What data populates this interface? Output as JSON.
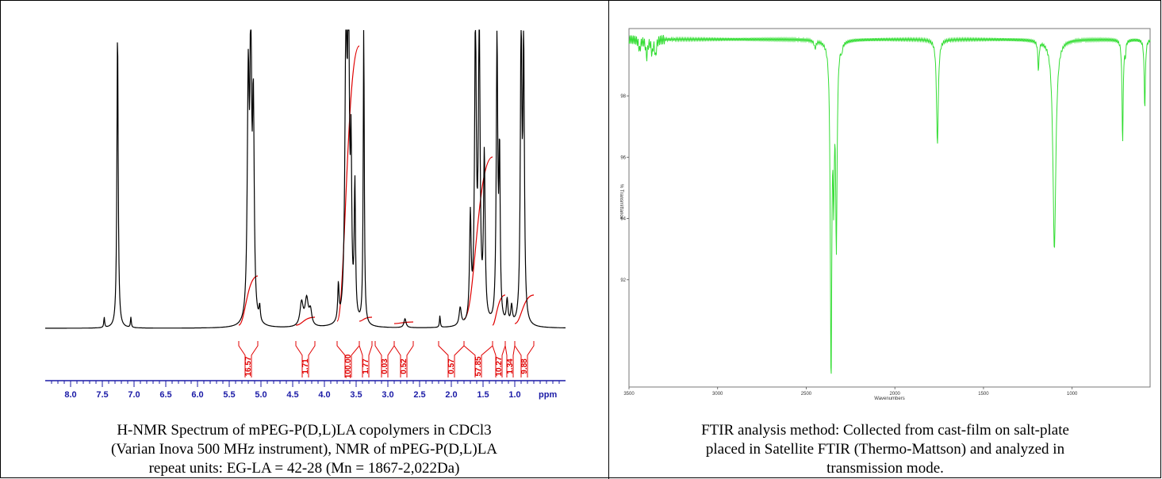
{
  "nmr": {
    "caption_lines": [
      "H-NMR Spectrum of mPEG-P(D,L)LA copolymers in CDCl3",
      "(Varian Inova 500 MHz instrument), NMR of mPEG-P(D,L)LA",
      "repeat units: EG-LA = 42-28 (Mn = 1867-2,022Da)"
    ],
    "axis_unit": "ppm",
    "colors": {
      "spectrum": "#000000",
      "integral": "#e00000",
      "axis": "#1a1aa6"
    }
  },
  "ftir": {
    "caption_lines": [
      "FTIR analysis method: Collected from cast-film on salt-plate",
      "placed in Satellite FTIR (Thermo-Mattson) and analyzed in",
      "transmission mode."
    ],
    "xlabel": "Wavenumbers",
    "ylabel": "% Transmittance",
    "colors": {
      "spectrum": "#33dd33",
      "axis": "#555555"
    }
  },
  "chart_data": [
    {
      "type": "line",
      "name": "1H-NMR spectrum",
      "xlabel": "ppm",
      "xlim": [
        8.4,
        0.2
      ],
      "x_reversed": true,
      "x_ticks": [
        8.0,
        7.5,
        7.0,
        6.5,
        6.0,
        5.5,
        5.0,
        4.5,
        4.0,
        3.5,
        3.0,
        2.5,
        2.0,
        1.5,
        1.0
      ],
      "x_tick_labels": [
        "8.0",
        "7.5",
        "7.0",
        "6.5",
        "6.0",
        "5.5",
        "5.0",
        "4.5",
        "4.0",
        "3.5",
        "3.0",
        "2.5",
        "2.0",
        "1.5",
        "1.0"
      ],
      "peaks": [
        {
          "ppm": 7.26,
          "height": 1.0,
          "width": 0.012
        },
        {
          "ppm": 7.47,
          "height": 0.035,
          "width": 0.008
        },
        {
          "ppm": 7.05,
          "height": 0.035,
          "width": 0.008
        },
        {
          "ppm": 5.2,
          "height": 0.8,
          "width": 0.018
        },
        {
          "ppm": 5.16,
          "height": 1.0,
          "width": 0.014
        },
        {
          "ppm": 5.12,
          "height": 0.7,
          "width": 0.016
        },
        {
          "ppm": 5.02,
          "height": 0.05,
          "width": 0.012
        },
        {
          "ppm": 4.36,
          "height": 0.08,
          "width": 0.03
        },
        {
          "ppm": 4.28,
          "height": 0.09,
          "width": 0.03
        },
        {
          "ppm": 4.22,
          "height": 0.05,
          "width": 0.025
        },
        {
          "ppm": 3.78,
          "height": 0.12,
          "width": 0.012
        },
        {
          "ppm": 3.66,
          "height": 0.95,
          "width": 0.02
        },
        {
          "ppm": 3.62,
          "height": 1.0,
          "width": 0.016
        },
        {
          "ppm": 3.58,
          "height": 0.5,
          "width": 0.012
        },
        {
          "ppm": 3.52,
          "height": 0.45,
          "width": 0.012
        },
        {
          "ppm": 3.38,
          "height": 1.0,
          "width": 0.01
        },
        {
          "ppm": 2.73,
          "height": 0.03,
          "width": 0.02
        },
        {
          "ppm": 2.18,
          "height": 0.04,
          "width": 0.008
        },
        {
          "ppm": 1.86,
          "height": 0.06,
          "width": 0.02
        },
        {
          "ppm": 1.7,
          "height": 0.35,
          "width": 0.015
        },
        {
          "ppm": 1.62,
          "height": 1.0,
          "width": 0.016
        },
        {
          "ppm": 1.56,
          "height": 1.0,
          "width": 0.016
        },
        {
          "ppm": 1.48,
          "height": 0.55,
          "width": 0.015
        },
        {
          "ppm": 1.28,
          "height": 0.95,
          "width": 0.014
        },
        {
          "ppm": 1.24,
          "height": 0.55,
          "width": 0.012
        },
        {
          "ppm": 1.12,
          "height": 0.08,
          "width": 0.015
        },
        {
          "ppm": 1.05,
          "height": 0.06,
          "width": 0.015
        },
        {
          "ppm": 0.9,
          "height": 1.0,
          "width": 0.014
        },
        {
          "ppm": 0.86,
          "height": 0.9,
          "width": 0.014
        }
      ],
      "integrals": [
        {
          "from": 5.35,
          "to": 5.05,
          "value": "16.57"
        },
        {
          "from": 4.45,
          "to": 4.15,
          "value": "1.71"
        },
        {
          "from": 3.8,
          "to": 3.45,
          "value": "100.00"
        },
        {
          "from": 3.45,
          "to": 3.25,
          "value": "1.77"
        },
        {
          "from": 3.2,
          "to": 2.9,
          "value": "0.03"
        },
        {
          "from": 2.9,
          "to": 2.6,
          "value": "0.52"
        },
        {
          "from": 2.2,
          "to": 1.8,
          "value": "0.57"
        },
        {
          "from": 1.8,
          "to": 1.35,
          "value": "57.85"
        },
        {
          "from": 1.35,
          "to": 1.15,
          "value": "10.27"
        },
        {
          "from": 1.15,
          "to": 1.0,
          "value": "1.34"
        },
        {
          "from": 1.0,
          "to": 0.7,
          "value": "9.88"
        }
      ]
    },
    {
      "type": "line",
      "name": "FTIR spectrum",
      "xlabel": "Wavenumbers",
      "ylabel": "% Transmittance",
      "xlim": [
        3500,
        560
      ],
      "x_reversed": true,
      "x_ticks": [
        3500,
        3000,
        2500,
        2000,
        1500,
        1000
      ],
      "x_tick_labels": [
        "3500",
        "3000",
        "2500",
        "2000",
        "1500",
        "1000"
      ],
      "ylim": [
        88.5,
        100.2
      ],
      "y_ticks": [
        92,
        94,
        96,
        98
      ],
      "y_tick_labels": [
        "92",
        "94",
        "96",
        "98"
      ],
      "baseline": 99.85,
      "bands": [
        {
          "wavenumber": 3440,
          "transmittance": 99.5,
          "width": 6
        },
        {
          "wavenumber": 3400,
          "transmittance": 99.3,
          "width": 6
        },
        {
          "wavenumber": 3370,
          "transmittance": 99.4,
          "width": 5
        },
        {
          "wavenumber": 3350,
          "transmittance": 99.3,
          "width": 5
        },
        {
          "wavenumber": 2450,
          "transmittance": 99.6,
          "width": 6
        },
        {
          "wavenumber": 2360,
          "transmittance": 89.0,
          "width": 5
        },
        {
          "wavenumber": 2345,
          "transmittance": 95.6,
          "width": 4
        },
        {
          "wavenumber": 2330,
          "transmittance": 93.4,
          "width": 5
        },
        {
          "wavenumber": 2300,
          "transmittance": 99.6,
          "width": 4
        },
        {
          "wavenumber": 1760,
          "transmittance": 96.4,
          "width": 6
        },
        {
          "wavenumber": 1190,
          "transmittance": 98.9,
          "width": 4
        },
        {
          "wavenumber": 1100,
          "transmittance": 93.0,
          "width": 10
        },
        {
          "wavenumber": 715,
          "transmittance": 96.5,
          "width": 4
        },
        {
          "wavenumber": 700,
          "transmittance": 99.4,
          "width": 3
        },
        {
          "wavenumber": 590,
          "transmittance": 97.6,
          "width": 4
        }
      ]
    }
  ]
}
